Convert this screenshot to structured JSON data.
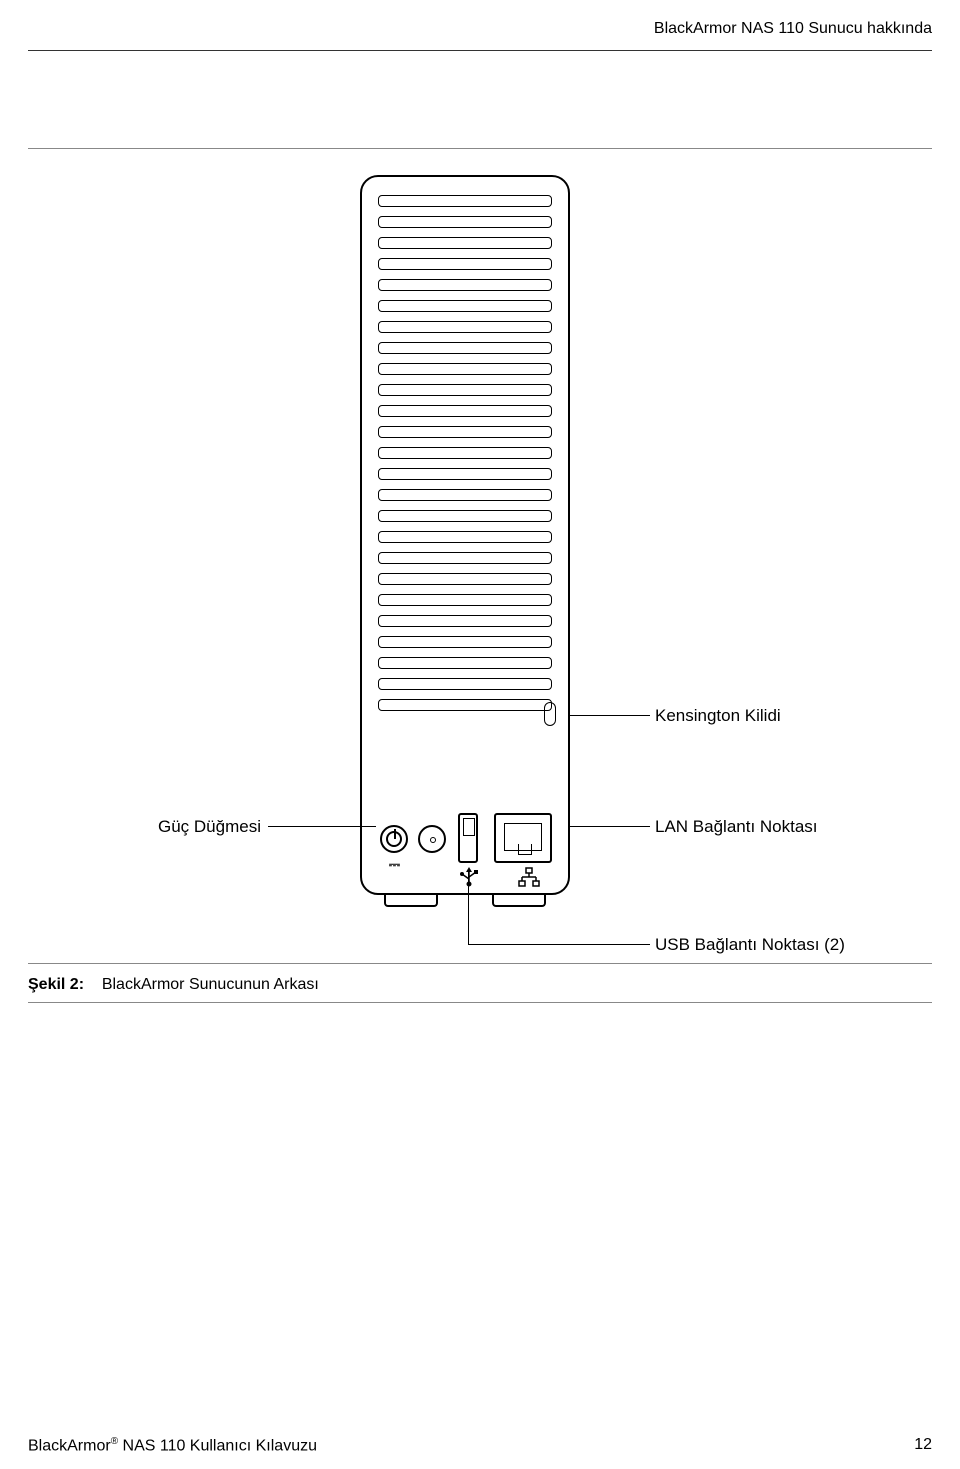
{
  "header": {
    "title": "BlackArmor NAS 110 Sunucu hakkında"
  },
  "diagram": {
    "labels": {
      "kensington": "Kensington Kilidi",
      "power_button": "Güç Düğmesi",
      "lan_port": "LAN Bağlantı Noktası",
      "usb_port": "USB Bağlantı Noktası (2)"
    },
    "vent_slat_count": 25,
    "stroke_color": "#000000",
    "background_color": "#ffffff"
  },
  "caption": {
    "figure_label": "Şekil 2:",
    "figure_text": "BlackArmor Sunucunun Arkası"
  },
  "footer": {
    "product_prefix": "BlackArmor",
    "product_suffix": " NAS 110 Kullanıcı Kılavuzu",
    "page_number": "12"
  }
}
